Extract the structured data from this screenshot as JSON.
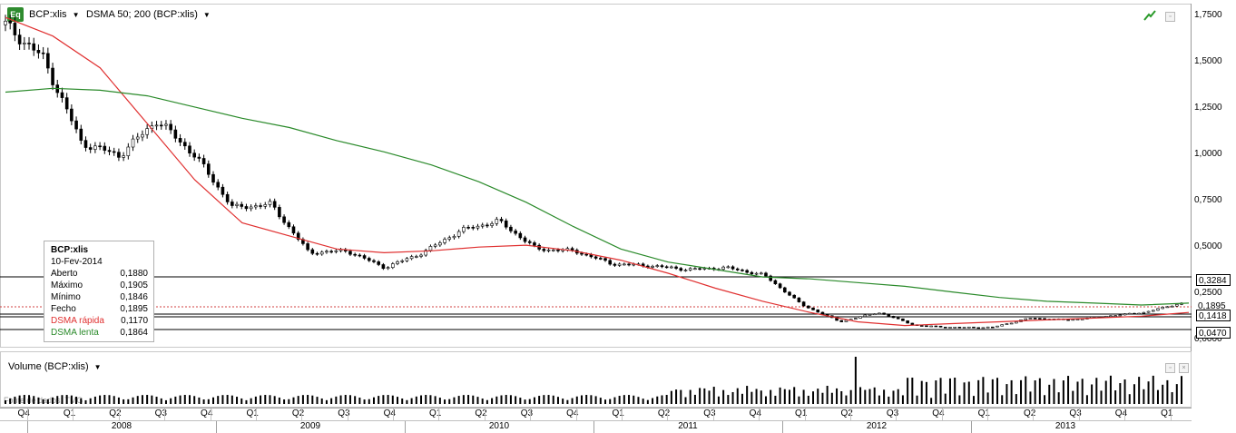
{
  "toolbar": {
    "badge": "Eq",
    "symbol": "BCP:xlis",
    "indicator": "DSMA 50; 200 (BCP:xlis)"
  },
  "price_axis": {
    "labels": [
      "1,7500",
      "1,5000",
      "1,2500",
      "1,0000",
      "0,7500",
      "0,5000",
      "0,2500",
      "0,0000"
    ],
    "tags": [
      "0,3284",
      "0,1895",
      "0,1418",
      "0,0470"
    ]
  },
  "info_box": {
    "symbol": "BCP:xlis",
    "date": "10-Fev-2014",
    "rows": [
      {
        "label": "Aberto",
        "value": "0,1880"
      },
      {
        "label": "Máximo",
        "value": "0,1905"
      },
      {
        "label": "Mínimo",
        "value": "0,1846"
      },
      {
        "label": "Fecho",
        "value": "0,1895"
      },
      {
        "label": "DSMA rápida",
        "value": "0,1170"
      },
      {
        "label": "DSMA lenta",
        "value": "0,1864"
      }
    ]
  },
  "volume_pane": {
    "title": "Volume (BCP:xlis)",
    "source": "Fonte de dados: TMG"
  },
  "timeline": {
    "quarters": [
      "Q4",
      "Q1",
      "Q2",
      "Q3",
      "Q4",
      "Q1",
      "Q2",
      "Q3",
      "Q4",
      "Q1",
      "Q2",
      "Q3",
      "Q4",
      "Q1",
      "Q2",
      "Q3",
      "Q4",
      "Q1",
      "Q2",
      "Q3",
      "Q4",
      "Q1",
      "Q2",
      "Q3",
      "Q4",
      "Q1"
    ],
    "years": [
      "2008",
      "2009",
      "2010",
      "2011",
      "2012",
      "2013"
    ]
  },
  "colors": {
    "fast_ma": "#e03030",
    "slow_ma": "#2a8a2a",
    "badge": "#2e8b2e"
  },
  "chart_data": {
    "type": "line",
    "y_range": [
      0,
      1.75
    ],
    "series": [
      {
        "name": "DSMA rápida",
        "color": "#e03030",
        "values": [
          1.72,
          1.62,
          1.45,
          1.15,
          0.85,
          0.62,
          0.55,
          0.48,
          0.46,
          0.47,
          0.49,
          0.5,
          0.47,
          0.42,
          0.35,
          0.27,
          0.2,
          0.14,
          0.09,
          0.07,
          0.08,
          0.09,
          0.1,
          0.11,
          0.12,
          0.14
        ]
      },
      {
        "name": "DSMA lenta",
        "color": "#2a8a2a",
        "values": [
          1.32,
          1.34,
          1.33,
          1.3,
          1.24,
          1.18,
          1.13,
          1.06,
          1.0,
          0.93,
          0.84,
          0.73,
          0.6,
          0.48,
          0.41,
          0.37,
          0.33,
          0.32,
          0.3,
          0.28,
          0.25,
          0.22,
          0.2,
          0.19,
          0.18,
          0.19
        ]
      }
    ],
    "candle_close": [
      1.68,
      1.5,
      1.05,
      0.98,
      1.17,
      0.98,
      0.7,
      0.72,
      0.46,
      0.47,
      0.38,
      0.46,
      0.58,
      0.63,
      0.48,
      0.47,
      0.4,
      0.39,
      0.37,
      0.38,
      0.34,
      0.18,
      0.09,
      0.14,
      0.07,
      0.06,
      0.06,
      0.11,
      0.1,
      0.12,
      0.14,
      0.19
    ]
  }
}
